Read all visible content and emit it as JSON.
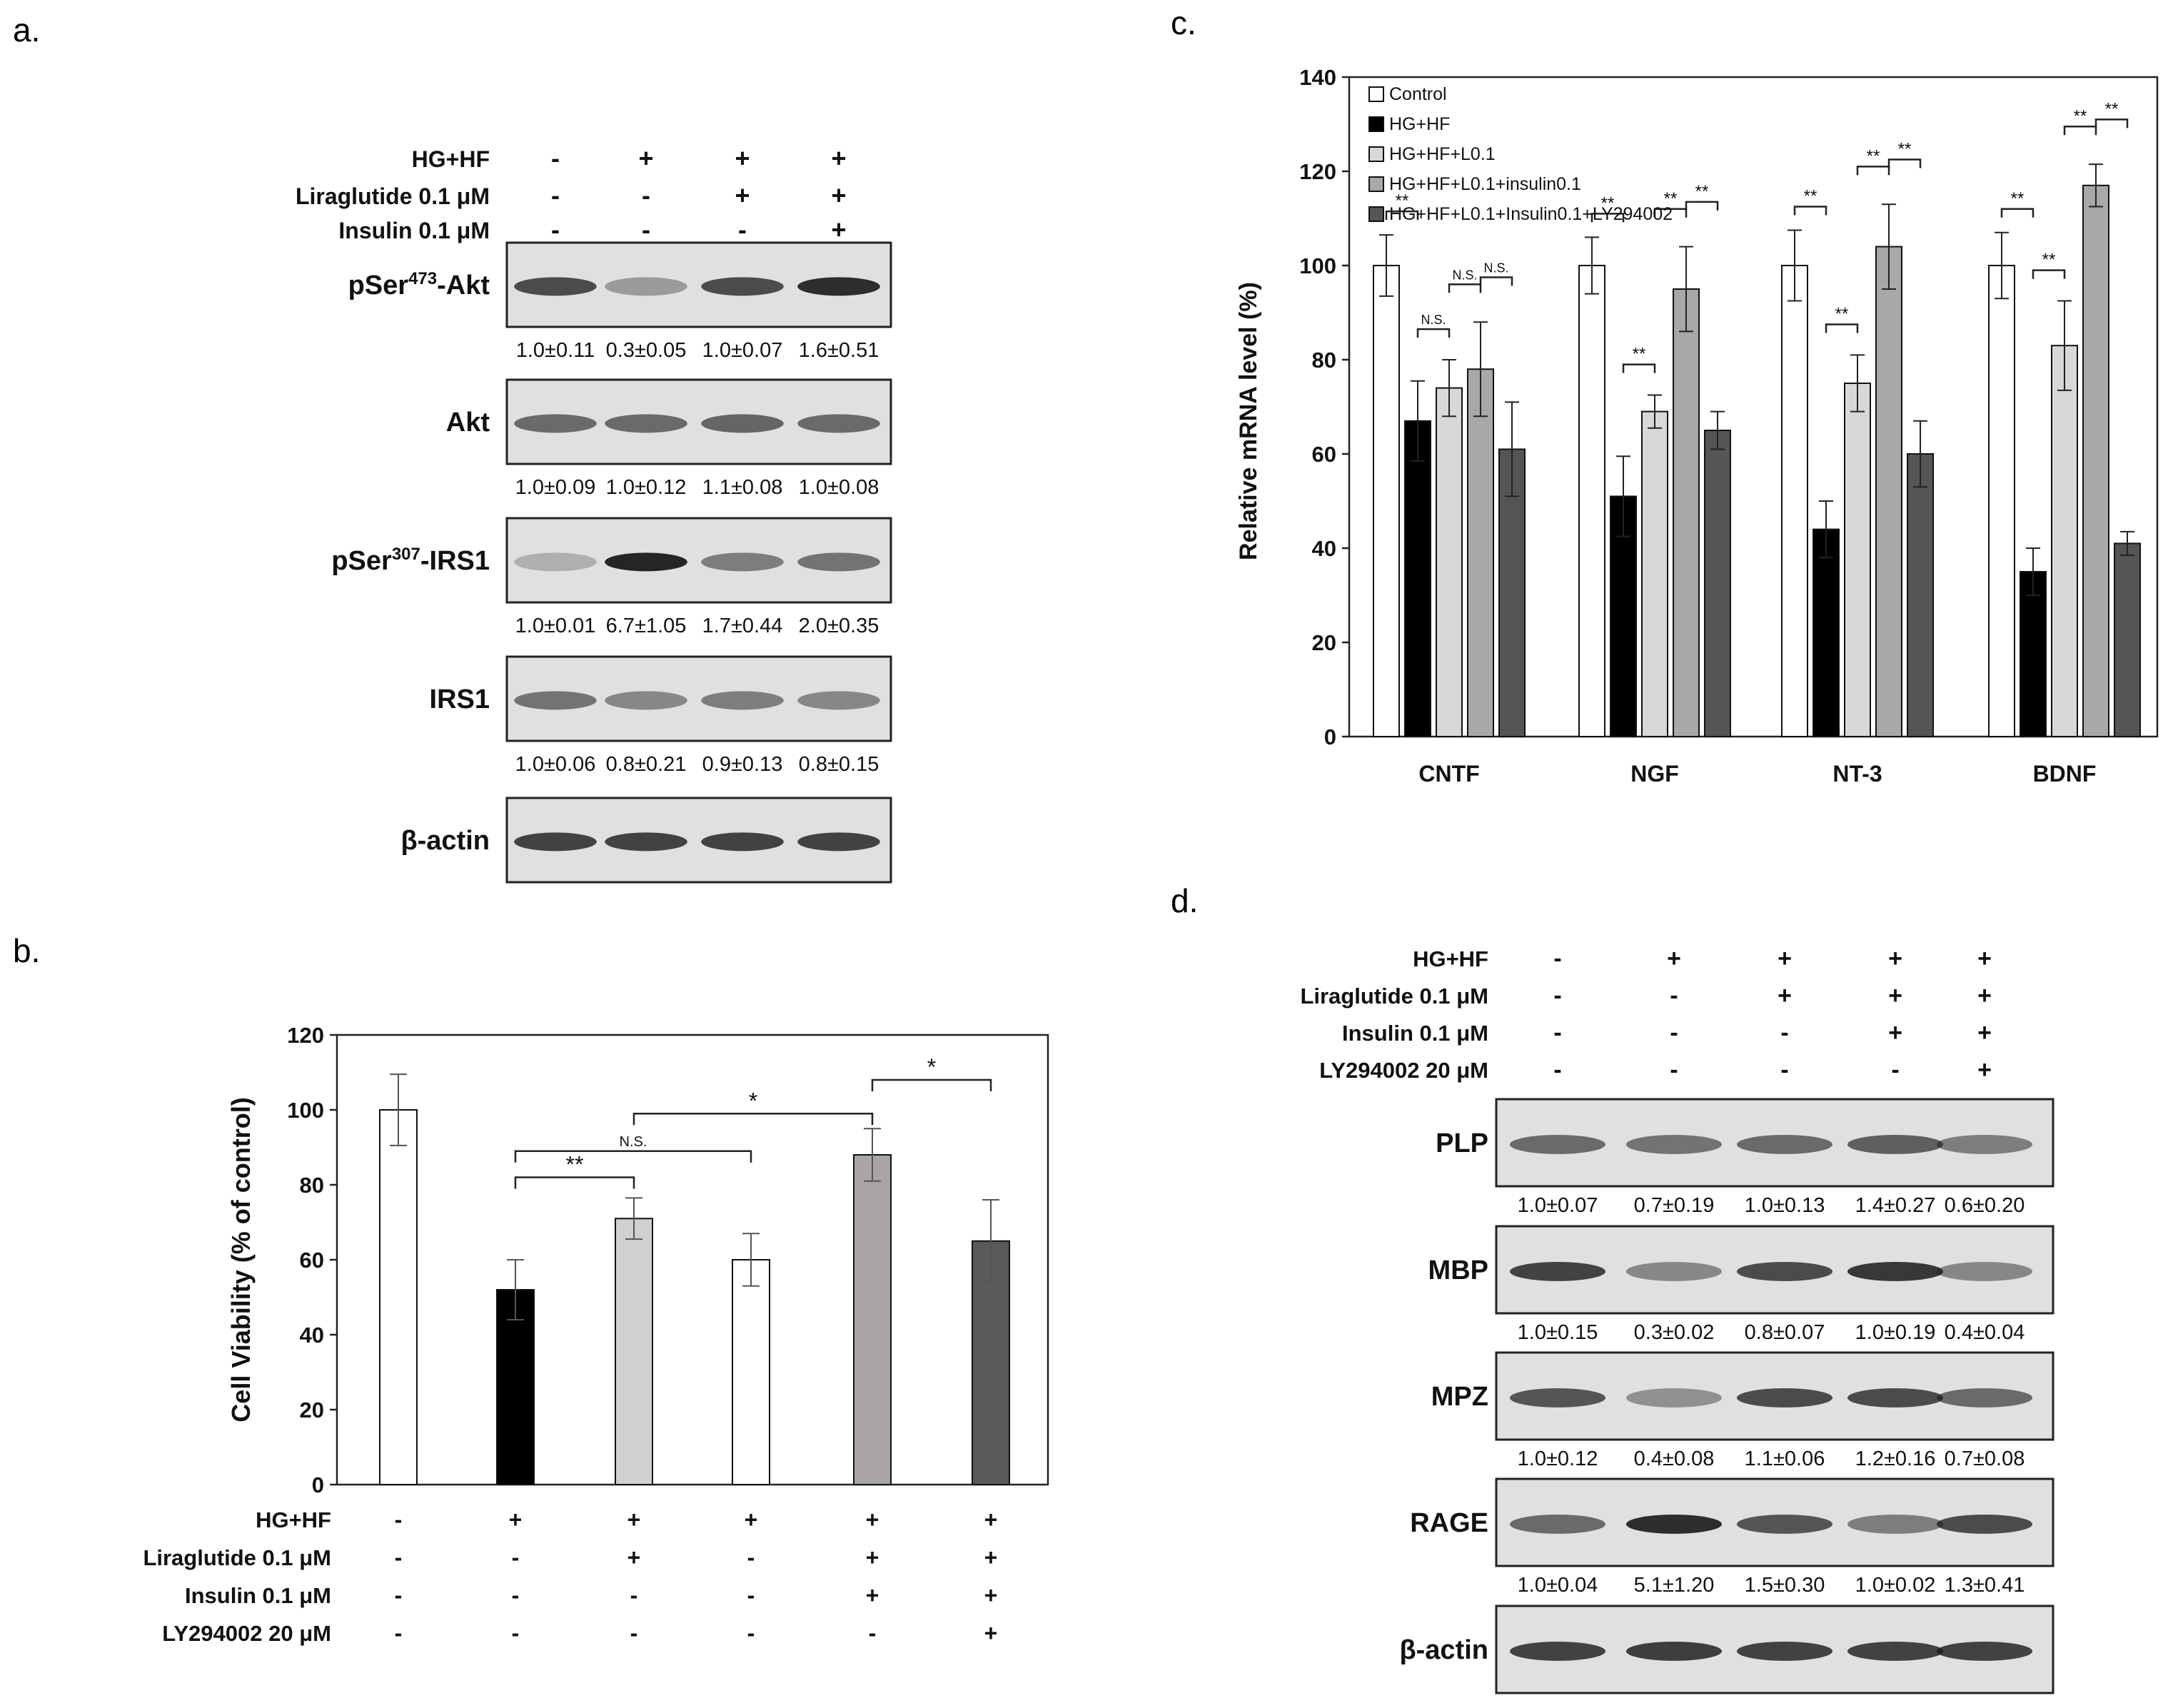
{
  "panels": {
    "a": {
      "label": "a.",
      "conditions": [
        {
          "name": "HG+HF",
          "signs": [
            "-",
            "+",
            "+",
            "+"
          ]
        },
        {
          "name": "Liraglutide 0.1 μM",
          "signs": [
            "-",
            "-",
            "+",
            "+"
          ]
        },
        {
          "name": "Insulin 0.1 μM",
          "signs": [
            "-",
            "-",
            "-",
            "+"
          ]
        }
      ],
      "blots": [
        {
          "sup": "473",
          "pre": "pSer",
          "post": "-Akt",
          "intensity": [
            0.75,
            0.35,
            0.75,
            0.9
          ],
          "quant": [
            "1.0±0.11",
            "0.3±0.05",
            "1.0±0.07",
            "1.6±0.51"
          ]
        },
        {
          "pre": "Akt",
          "intensity": [
            0.6,
            0.6,
            0.62,
            0.6
          ],
          "quant": [
            "1.0±0.09",
            "1.0±0.12",
            "1.1±0.08",
            "1.0±0.08"
          ]
        },
        {
          "sup": "307",
          "pre": "pSer",
          "post": "-IRS1",
          "intensity": [
            0.25,
            0.95,
            0.5,
            0.55
          ],
          "quant": [
            "1.0±0.01",
            "6.7±1.05",
            "1.7±0.44",
            "2.0±0.35"
          ]
        },
        {
          "pre": "IRS1",
          "intensity": [
            0.55,
            0.45,
            0.5,
            0.45
          ],
          "quant": [
            "1.0±0.06",
            "0.8±0.21",
            "0.9±0.13",
            "0.8±0.15"
          ]
        },
        {
          "pre": "β-actin",
          "intensity": [
            0.8,
            0.8,
            0.8,
            0.8
          ],
          "quant": []
        }
      ]
    },
    "b": {
      "label": "b.",
      "conditions": [
        {
          "name": "HG+HF",
          "signs": [
            "-",
            "+",
            "+",
            "+",
            "+",
            "+"
          ]
        },
        {
          "name": "Liraglutide 0.1 μM",
          "signs": [
            "-",
            "-",
            "+",
            "-",
            "+",
            "+"
          ]
        },
        {
          "name": "Insulin 0.1 μM",
          "signs": [
            "-",
            "-",
            "-",
            "-",
            "+",
            "+"
          ]
        },
        {
          "name": "LY294002 20 μM",
          "signs": [
            "-",
            "-",
            "-",
            "-",
            "-",
            "+"
          ]
        }
      ]
    },
    "c": {
      "label": "c."
    },
    "d": {
      "label": "d.",
      "conditions": [
        {
          "name": "HG+HF",
          "signs": [
            "-",
            "+",
            "+",
            "+",
            "+"
          ]
        },
        {
          "name": "Liraglutide 0.1 μM",
          "signs": [
            "-",
            "-",
            "+",
            "+",
            "+"
          ]
        },
        {
          "name": "Insulin 0.1 μM",
          "signs": [
            "-",
            "-",
            "-",
            "+",
            "+"
          ]
        },
        {
          "name": "LY294002 20 μM",
          "signs": [
            "-",
            "-",
            "-",
            "-",
            "+"
          ]
        }
      ],
      "blots": [
        {
          "pre": "PLP",
          "intensity": [
            0.6,
            0.55,
            0.6,
            0.65,
            0.5
          ],
          "quant": [
            "1.0±0.07",
            "0.7±0.19",
            "1.0±0.13",
            "1.4±0.27",
            "0.6±0.20"
          ]
        },
        {
          "pre": "MBP",
          "intensity": [
            0.8,
            0.45,
            0.75,
            0.85,
            0.45
          ],
          "quant": [
            "1.0±0.15",
            "0.3±0.02",
            "0.8±0.07",
            "1.0±0.19",
            "0.4±0.04"
          ]
        },
        {
          "pre": "MPZ",
          "intensity": [
            0.7,
            0.4,
            0.75,
            0.75,
            0.6
          ],
          "quant": [
            "1.0±0.12",
            "0.4±0.08",
            "1.1±0.06",
            "1.2±0.16",
            "0.7±0.08"
          ]
        },
        {
          "pre": "RAGE",
          "intensity": [
            0.6,
            0.9,
            0.7,
            0.5,
            0.75
          ],
          "quant": [
            "1.0±0.04",
            "5.1±1.20",
            "1.5±0.30",
            "1.0±0.02",
            "1.3±0.41"
          ]
        },
        {
          "pre": "β-actin",
          "intensity": [
            0.8,
            0.82,
            0.8,
            0.8,
            0.8
          ],
          "quant": []
        }
      ]
    }
  },
  "chart_data": [
    {
      "panel": "b",
      "type": "bar",
      "ylabel": "Cell Viability (% of control)",
      "ylim": [
        0,
        120
      ],
      "yticks": [
        0,
        20,
        40,
        60,
        80,
        100,
        120
      ],
      "values": [
        100,
        52,
        71,
        60,
        88,
        65
      ],
      "errors": [
        9.5,
        8,
        5.5,
        7,
        7,
        11
      ],
      "colors": [
        "#ffffff",
        "#000000",
        "#d0d0d0",
        "#ffffff",
        "#a9a5a5",
        "#5a5a5a"
      ],
      "significance": [
        {
          "from": 1,
          "to": 2,
          "label": "**"
        },
        {
          "from": 1,
          "to": 3,
          "label": "N.S."
        },
        {
          "from": 2,
          "to": 4,
          "label": "*"
        },
        {
          "from": 4,
          "to": 5,
          "label": "*"
        }
      ]
    },
    {
      "panel": "c",
      "type": "bar",
      "ylabel": "Relative mRNA level (%)",
      "ylim": [
        0,
        140
      ],
      "yticks": [
        0,
        20,
        40,
        60,
        80,
        100,
        120,
        140
      ],
      "categories": [
        "CNTF",
        "NGF",
        "NT-3",
        "BDNF"
      ],
      "series": [
        {
          "name": "Control",
          "color": "#ffffff",
          "values": [
            100,
            100,
            100,
            100
          ],
          "errors": [
            6.5,
            6,
            7.5,
            7
          ]
        },
        {
          "name": "HG+HF",
          "color": "#000000",
          "values": [
            67,
            51,
            44,
            35
          ],
          "errors": [
            8.5,
            8.5,
            6,
            5
          ]
        },
        {
          "name": "HG+HF+L0.1",
          "color": "#d8d8d8",
          "values": [
            74,
            69,
            75,
            83
          ],
          "errors": [
            6,
            3.5,
            6,
            9.5
          ]
        },
        {
          "name": "HG+HF+L0.1+insulin0.1",
          "color": "#a8a8a8",
          "values": [
            78,
            95,
            104,
            117
          ],
          "errors": [
            10,
            9,
            9,
            4.5
          ]
        },
        {
          "name": "HG+HF+L0.1+Insulin0.1+LY294002",
          "color": "#555555",
          "values": [
            61,
            65,
            60,
            41
          ],
          "errors": [
            10,
            4,
            7,
            2.5
          ]
        }
      ],
      "significance": [
        {
          "group": 0,
          "from": 0,
          "to": 1,
          "label": "**"
        },
        {
          "group": 0,
          "from": 1,
          "to": 2,
          "label": "N.S."
        },
        {
          "group": 0,
          "from": 2,
          "to": 3,
          "label": "N.S."
        },
        {
          "group": 0,
          "from": 3,
          "to": 4,
          "label": "N.S."
        },
        {
          "group": 1,
          "from": 0,
          "to": 1,
          "label": "**"
        },
        {
          "group": 1,
          "from": 1,
          "to": 2,
          "label": "**"
        },
        {
          "group": 1,
          "from": 2,
          "to": 3,
          "label": "**"
        },
        {
          "group": 1,
          "from": 3,
          "to": 4,
          "label": "**"
        },
        {
          "group": 2,
          "from": 0,
          "to": 1,
          "label": "**"
        },
        {
          "group": 2,
          "from": 1,
          "to": 2,
          "label": "**"
        },
        {
          "group": 2,
          "from": 2,
          "to": 3,
          "label": "**"
        },
        {
          "group": 2,
          "from": 3,
          "to": 4,
          "label": "**"
        },
        {
          "group": 3,
          "from": 0,
          "to": 1,
          "label": "**"
        },
        {
          "group": 3,
          "from": 1,
          "to": 2,
          "label": "**"
        },
        {
          "group": 3,
          "from": 2,
          "to": 3,
          "label": "**"
        },
        {
          "group": 3,
          "from": 3,
          "to": 4,
          "label": "**"
        }
      ]
    }
  ]
}
